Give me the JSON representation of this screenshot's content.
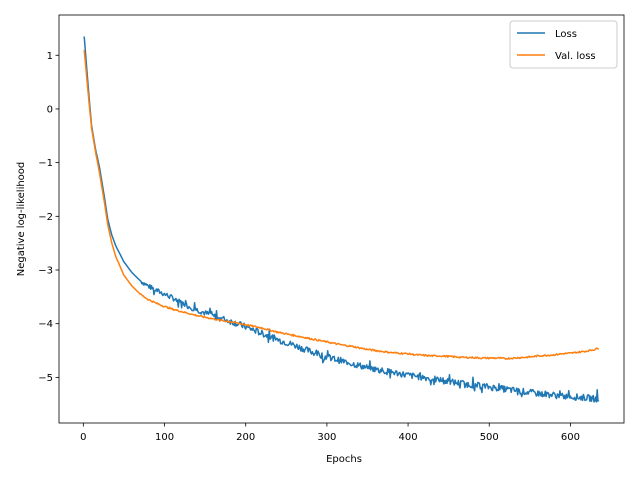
{
  "chart_data": {
    "type": "line",
    "title": "",
    "xlabel": "Epochs",
    "ylabel": "Negative log-likelihood",
    "xlim": [
      -30,
      666
    ],
    "ylim": [
      -5.85,
      1.75
    ],
    "xticks": [
      0,
      100,
      200,
      300,
      400,
      500,
      600
    ],
    "xtick_labels": [
      "0",
      "100",
      "200",
      "300",
      "400",
      "500",
      "600"
    ],
    "yticks": [
      1,
      0,
      -1,
      -2,
      -3,
      -4,
      -5
    ],
    "ytick_labels": [
      "1",
      "0",
      "−1",
      "−2",
      "−3",
      "−4",
      "−5"
    ],
    "grid": false,
    "legend": {
      "position": "top-right"
    },
    "series": [
      {
        "name": "Loss",
        "color": "#1f77b4",
        "x": [
          1,
          5,
          10,
          15,
          20,
          25,
          30,
          35,
          40,
          50,
          60,
          70,
          80,
          90,
          100,
          110,
          120,
          130,
          140,
          150,
          160,
          170,
          180,
          190,
          200,
          210,
          220,
          230,
          240,
          250,
          260,
          270,
          280,
          290,
          300,
          310,
          320,
          330,
          340,
          350,
          360,
          370,
          380,
          390,
          400,
          410,
          420,
          430,
          440,
          450,
          460,
          470,
          480,
          490,
          500,
          510,
          520,
          530,
          540,
          550,
          560,
          570,
          580,
          590,
          600,
          610,
          620,
          630,
          635
        ],
        "y": [
          1.35,
          0.6,
          -0.3,
          -0.75,
          -1.1,
          -1.55,
          -2.05,
          -2.35,
          -2.55,
          -2.85,
          -3.05,
          -3.2,
          -3.3,
          -3.38,
          -3.45,
          -3.52,
          -3.6,
          -3.68,
          -3.74,
          -3.8,
          -3.86,
          -3.9,
          -3.95,
          -4.0,
          -4.06,
          -4.12,
          -4.18,
          -4.24,
          -4.3,
          -4.35,
          -4.4,
          -4.46,
          -4.52,
          -4.57,
          -4.62,
          -4.66,
          -4.7,
          -4.74,
          -4.78,
          -4.82,
          -4.85,
          -4.88,
          -4.9,
          -4.93,
          -4.96,
          -4.98,
          -5.0,
          -5.03,
          -5.05,
          -5.08,
          -5.1,
          -5.12,
          -5.14,
          -5.16,
          -5.18,
          -5.2,
          -5.22,
          -5.24,
          -5.26,
          -5.28,
          -5.3,
          -5.31,
          -5.33,
          -5.35,
          -5.36,
          -5.37,
          -5.38,
          -5.4,
          -5.4
        ]
      },
      {
        "name": "Val. loss",
        "color": "#ff7f0e",
        "x": [
          1,
          5,
          10,
          15,
          20,
          25,
          30,
          35,
          40,
          50,
          60,
          70,
          80,
          90,
          100,
          110,
          120,
          130,
          140,
          150,
          160,
          170,
          180,
          190,
          200,
          210,
          220,
          230,
          240,
          250,
          260,
          270,
          280,
          290,
          300,
          310,
          320,
          330,
          340,
          350,
          360,
          370,
          380,
          390,
          400,
          410,
          420,
          430,
          440,
          450,
          460,
          470,
          480,
          490,
          500,
          510,
          520,
          530,
          540,
          550,
          560,
          570,
          580,
          590,
          600,
          610,
          620,
          630,
          635
        ],
        "y": [
          1.1,
          0.45,
          -0.35,
          -0.8,
          -1.2,
          -1.65,
          -2.15,
          -2.5,
          -2.75,
          -3.1,
          -3.3,
          -3.45,
          -3.55,
          -3.62,
          -3.68,
          -3.73,
          -3.77,
          -3.81,
          -3.85,
          -3.88,
          -3.91,
          -3.94,
          -3.96,
          -3.99,
          -4.02,
          -4.05,
          -4.08,
          -4.12,
          -4.16,
          -4.19,
          -4.22,
          -4.25,
          -4.28,
          -4.31,
          -4.34,
          -4.37,
          -4.4,
          -4.42,
          -4.45,
          -4.48,
          -4.5,
          -4.52,
          -4.54,
          -4.55,
          -4.56,
          -4.58,
          -4.59,
          -4.6,
          -4.6,
          -4.61,
          -4.62,
          -4.63,
          -4.63,
          -4.64,
          -4.64,
          -4.64,
          -4.65,
          -4.64,
          -4.63,
          -4.62,
          -4.6,
          -4.59,
          -4.58,
          -4.56,
          -4.55,
          -4.53,
          -4.51,
          -4.48,
          -4.45
        ]
      }
    ]
  }
}
